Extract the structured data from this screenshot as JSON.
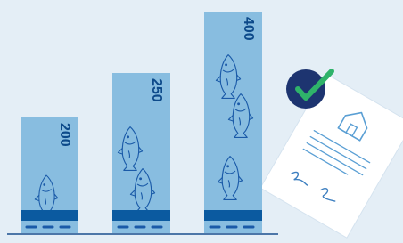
{
  "bars": [
    {
      "label": "200"
    },
    {
      "label": "250"
    },
    {
      "label": "400"
    }
  ]
}
